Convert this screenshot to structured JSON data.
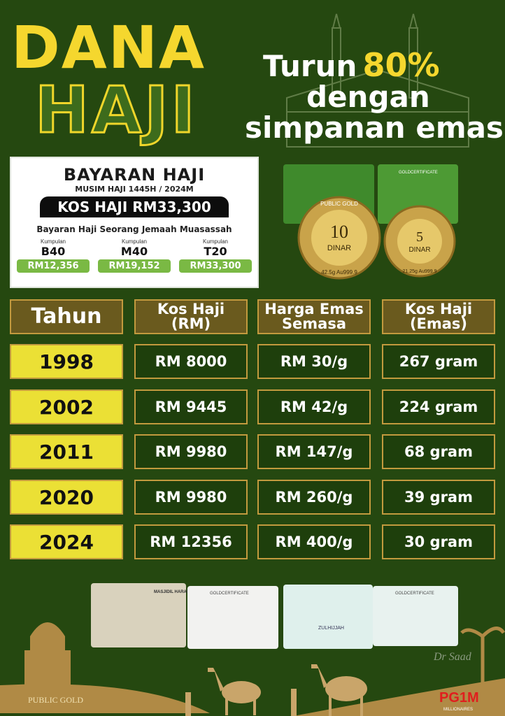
{
  "headline": {
    "line1": "DANA",
    "line2": "HAJI"
  },
  "tagline": {
    "turun": "Turun",
    "percent": "80%",
    "line2": "dengan",
    "line3": "simpanan emas"
  },
  "bayaran_card": {
    "title": "BAYARAN HAJI",
    "season": "MUSIM HAJI 1445H / 2024M",
    "kos": "KOS HAJI RM33,300",
    "subtitle": "Bayaran Haji Seorang Jemaah Muasassah",
    "groups": [
      {
        "label": "Kumpulan",
        "name": "B40",
        "amount": "RM12,356"
      },
      {
        "label": "Kumpulan",
        "name": "M40",
        "amount": "RM19,152"
      },
      {
        "label": "Kumpulan",
        "name": "T20",
        "amount": "RM33,300"
      }
    ]
  },
  "coins": {
    "brand": "PUBLIC GOLD",
    "coin1": {
      "value": "10",
      "unit": "DINAR",
      "spec": "42.5g Au999.9"
    },
    "coin2": {
      "value": "5",
      "unit": "DINAR",
      "spec": "21.25g Au999.9"
    },
    "cert": "GOLDCERTIFICATE"
  },
  "table": {
    "headers": [
      "Tahun",
      "Kos Haji\n(RM)",
      "Harga Emas\nSemasa",
      "Kos Haji\n(Emas)"
    ],
    "rows": [
      [
        "1998",
        "RM 8000",
        "RM 30/g",
        "267 gram"
      ],
      [
        "2002",
        "RM 9445",
        "RM 42/g",
        "224 gram"
      ],
      [
        "2011",
        "RM 9980",
        "RM 147/g",
        "68 gram"
      ],
      [
        "2020",
        "RM 9980",
        "RM 260/g",
        "39 gram"
      ],
      [
        "2024",
        "RM 12356",
        "RM 400/g",
        "30 gram"
      ]
    ]
  },
  "footer": {
    "card1": "MASJIDIL HARAM",
    "cert": "GOLDCERTIFICATE",
    "card3": "ZULHIJJAH",
    "signature": "Dr Saad",
    "logo_left": "PUBLIC GOLD",
    "logo_right": "PG1M",
    "logo_right_sub": "MILLIONAIRES"
  },
  "colors": {
    "background": "#254810",
    "yellow": "#f5d72e",
    "gold": "#c29a3e",
    "header_cell": "#6a5a1e",
    "value_cell": "#1e3f0c",
    "green_pill": "#7ab944"
  }
}
